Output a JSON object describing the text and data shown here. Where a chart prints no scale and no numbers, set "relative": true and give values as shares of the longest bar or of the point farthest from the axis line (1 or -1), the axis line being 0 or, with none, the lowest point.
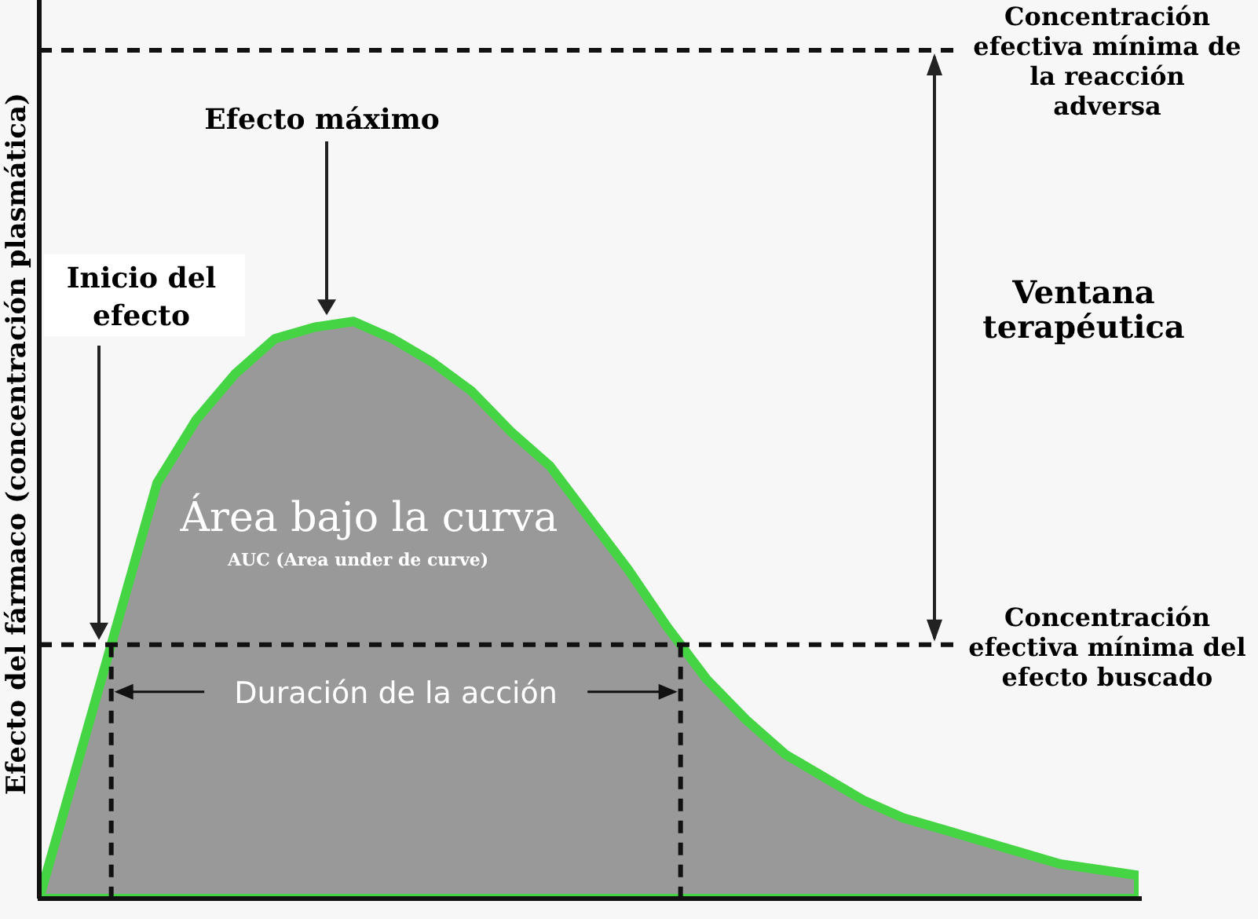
{
  "chart_data": {
    "type": "area",
    "relative": true,
    "ylabel": "Efecto del fármaco (concentración plasmática)",
    "categories": [
      null,
      null,
      null,
      null,
      null,
      null,
      null,
      null,
      null,
      null,
      null,
      null,
      null,
      null,
      null,
      null,
      null,
      null,
      null,
      null,
      null,
      null,
      null,
      null,
      null,
      null,
      null,
      null,
      null
    ],
    "series": [
      {
        "color": "#999999",
        "values": [
          0,
          0.24,
          0.48,
          0.72,
          0.83,
          0.91,
          0.97,
          0.99,
          1,
          0.97,
          0.93,
          0.88,
          0.81,
          0.75,
          0.66,
          0.57,
          0.47,
          0.38,
          0.31,
          0.25,
          0.21,
          0.17,
          0.14,
          0.12,
          0.1,
          0.08,
          0.06,
          0.05,
          0.04
        ]
      }
    ],
    "ref_lines": [
      {
        "axis": "y",
        "value": 0.44,
        "label": "Concentración efectiva mínima del efecto buscado",
        "line_style": "dashed"
      },
      {
        "axis": "y",
        "value": 1.47,
        "label": "Concentración efectiva mínima de la reacción adversa",
        "line_style": "dashed"
      }
    ],
    "annotations": [
      "Efecto máximo",
      "Inicio del efecto",
      "Área bajo la curva",
      "AUC (Area under de curve)",
      "Ventana terapéutica",
      "Duración de la acción"
    ]
  }
}
